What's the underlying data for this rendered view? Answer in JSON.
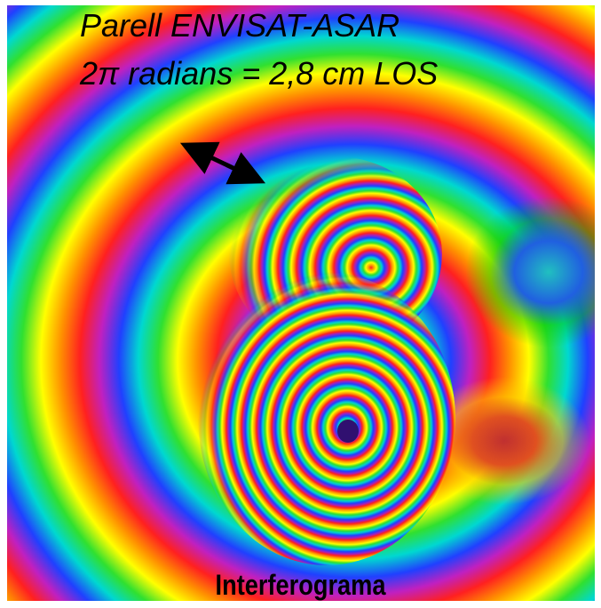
{
  "header": {
    "line1": "Parell ENVISAT-ASAR",
    "line2": "2π radians = 2,8 cm LOS"
  },
  "caption": "Interferograma"
}
